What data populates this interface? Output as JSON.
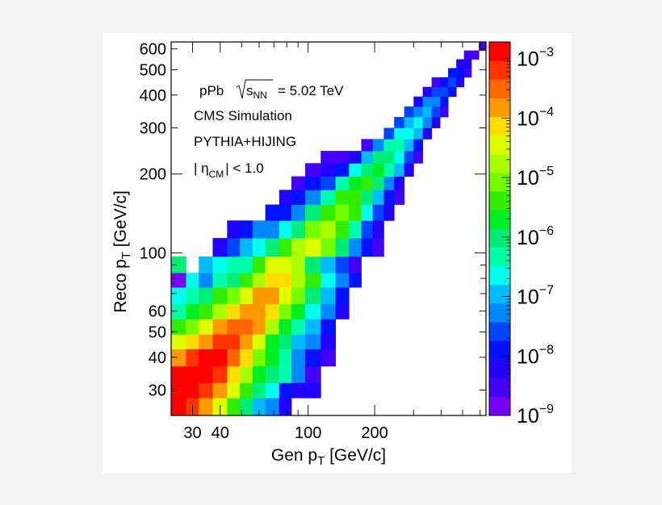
{
  "chart_data": {
    "type": "heatmap",
    "xlabel": {
      "main": "Gen p",
      "sub": "T",
      "unit": " [GeV/c]"
    },
    "ylabel": {
      "main": "Reco p",
      "sub": "T",
      "unit": " [GeV/c]"
    },
    "x_scale": "log",
    "y_scale": "log",
    "z_scale": "log",
    "xlim": [
      24,
      638
    ],
    "ylim": [
      24,
      638
    ],
    "zlim": [
      1e-09,
      0.0019
    ],
    "bin_edges": [
      24,
      28,
      32,
      37,
      43,
      49,
      56,
      64,
      74,
      84,
      97,
      114,
      133,
      153,
      174,
      196,
      220,
      245,
      272,
      300,
      330,
      362,
      395,
      430,
      468,
      507,
      548,
      592,
      638
    ],
    "x_tick_labels": [
      "30",
      "40",
      "100",
      "200"
    ],
    "x_tick_values": [
      30,
      40,
      100,
      200
    ],
    "x_minor_ticks": [
      50,
      60,
      70,
      80,
      90,
      300,
      400,
      500,
      600
    ],
    "y_tick_labels": [
      "30",
      "40",
      "50",
      "60",
      "100",
      "200",
      "300",
      "400",
      "500",
      "600"
    ],
    "y_tick_values": [
      30,
      40,
      50,
      60,
      100,
      200,
      300,
      400,
      500,
      600
    ],
    "y_minor_ticks": [
      70,
      80,
      90
    ],
    "colorbar": {
      "labels": [
        {
          "base": "10",
          "exp": "−3",
          "value": -3
        },
        {
          "base": "10",
          "exp": "−4",
          "value": -4
        },
        {
          "base": "10",
          "exp": "−5",
          "value": -5
        },
        {
          "base": "10",
          "exp": "−6",
          "value": -6
        },
        {
          "base": "10",
          "exp": "−7",
          "value": -7
        },
        {
          "base": "10",
          "exp": "−8",
          "value": -8
        },
        {
          "base": "10",
          "exp": "−9",
          "value": -9
        }
      ],
      "palette": [
        "#7700ff",
        "#4400ff",
        "#2200ff",
        "#0011ff",
        "#0044ff",
        "#0088ff",
        "#00bbff",
        "#00ffee",
        "#00ffaa",
        "#00ee77",
        "#00ee22",
        "#33ee00",
        "#77ff00",
        "#aaff00",
        "#ddff00",
        "#ffdd00",
        "#ff9900",
        "#ff6600",
        "#ff3300",
        "#ff0000"
      ]
    },
    "rows": [
      {
        "reco_bin": 0,
        "first_gen_bin": 0,
        "z": [
          0.0013,
          0.00064,
          0.00015,
          3.6e-05,
          4.1e-06,
          9.6e-07,
          1.1e-07,
          5.3e-08,
          6.1e-09
        ]
      },
      {
        "reco_bin": 1,
        "first_gen_bin": 0,
        "z": [
          0.0013,
          0.0013,
          0.00064,
          0.00015,
          3.6e-05,
          4.1e-06,
          9.6e-07,
          2.3e-07,
          1.3e-08,
          6.1e-09,
          6.1e-09
        ]
      },
      {
        "reco_bin": 2,
        "first_gen_bin": 0,
        "z": [
          0.0013,
          0.0013,
          0.0013,
          0.00064,
          7.4e-05,
          1.7e-05,
          2e-06,
          9.6e-07,
          4.7e-07,
          5.3e-08,
          3e-09
        ]
      },
      {
        "reco_bin": 3,
        "first_gen_bin": 0,
        "z": [
          0.00015,
          0.00064,
          0.0013,
          0.0013,
          0.00031,
          7.4e-05,
          8.4e-06,
          2e-06,
          4.7e-07,
          5.3e-08,
          1.3e-08,
          3e-09
        ]
      },
      {
        "reco_bin": 4,
        "first_gen_bin": 0,
        "z": [
          3.6e-05,
          7.4e-05,
          0.00015,
          0.00064,
          0.00064,
          0.00015,
          3.6e-05,
          2e-06,
          9.6e-07,
          1.1e-07,
          5.3e-08,
          6.1e-09
        ]
      },
      {
        "reco_bin": 5,
        "first_gen_bin": 0,
        "z": [
          4.1e-06,
          8.4e-06,
          3.6e-05,
          0.00015,
          0.00031,
          0.00031,
          0.00015,
          1.7e-05,
          2e-06,
          4.7e-07,
          1.1e-07,
          1.3e-08
        ]
      },
      {
        "reco_bin": 6,
        "first_gen_bin": 0,
        "z": [
          4.7e-07,
          2e-06,
          4.1e-06,
          1.7e-05,
          7.4e-05,
          0.00015,
          0.00015,
          7.4e-05,
          8.4e-06,
          2e-06,
          2.3e-07,
          5.3e-08,
          6.1e-09
        ]
      },
      {
        "reco_bin": 7,
        "first_gen_bin": 0,
        "z": [
          2.3e-07,
          4.7e-07,
          9.6e-07,
          4.1e-06,
          8.4e-06,
          3.6e-05,
          0.00015,
          0.00015,
          3.6e-05,
          8.4e-06,
          9.6e-07,
          1.1e-07,
          1.3e-08
        ]
      },
      {
        "reco_bin": 8,
        "first_gen_bin": 0,
        "z": [
          1.4e-09,
          2.3e-07,
          5.3e-08,
          4.7e-07,
          9.6e-07,
          4.1e-06,
          1.7e-05,
          7.4e-05,
          7.4e-05,
          1.7e-05,
          4.1e-06,
          2.3e-07,
          5.3e-08,
          1.3e-08
        ]
      },
      {
        "reco_bin": 9,
        "first_gen_bin": 0,
        "z": [
          9.6e-07,
          null,
          1.1e-07,
          2.3e-07,
          4.7e-07,
          4.7e-07,
          4.1e-06,
          3.6e-05,
          3.6e-05,
          1.7e-05,
          9.6e-07,
          1.1e-07,
          2.6e-08,
          3e-09
        ]
      },
      {
        "reco_bin": 10,
        "first_gen_bin": 3,
        "z": [
          6.1e-09,
          2.6e-08,
          1.1e-07,
          2.3e-07,
          9.6e-07,
          4.1e-06,
          1.7e-05,
          3.6e-05,
          8.4e-06,
          9.6e-07,
          5.3e-08,
          1.3e-08,
          3e-09
        ]
      },
      {
        "reco_bin": 11,
        "first_gen_bin": 4,
        "z": [
          6.1e-09,
          1.3e-08,
          5.3e-08,
          5.3e-08,
          2.3e-07,
          9.6e-07,
          8.4e-06,
          1.7e-05,
          4.1e-06,
          4.7e-07,
          2.6e-08,
          6.1e-09
        ]
      },
      {
        "reco_bin": 12,
        "first_gen_bin": 7,
        "z": [
          1.3e-08,
          1.3e-08,
          5.3e-08,
          9.6e-07,
          4.1e-06,
          8.4e-06,
          4.1e-06,
          2.3e-07,
          2.6e-08,
          6.1e-09
        ]
      },
      {
        "reco_bin": 13,
        "first_gen_bin": 8,
        "z": [
          6.1e-09,
          1.3e-08,
          5.3e-08,
          4.7e-07,
          4.1e-06,
          4.1e-06,
          9.6e-07,
          1.1e-07,
          1.3e-08,
          3e-09
        ]
      },
      {
        "reco_bin": 14,
        "first_gen_bin": 9,
        "z": [
          3e-09,
          1.3e-08,
          2.6e-08,
          4.7e-07,
          2e-06,
          4.1e-06,
          9.6e-07,
          5.3e-08,
          6.1e-09
        ]
      },
      {
        "reco_bin": 15,
        "first_gen_bin": 10,
        "z": [
          3e-09,
          6.1e-09,
          1.3e-08,
          2.3e-07,
          9.6e-07,
          2e-06,
          4.7e-07,
          1.1e-07,
          6.1e-09
        ]
      },
      {
        "reco_bin": 16,
        "first_gen_bin": 11,
        "z": [
          3e-09,
          3e-09,
          6.1e-09,
          1.1e-07,
          9.6e-07,
          9.6e-07,
          2.3e-07,
          2.6e-08,
          3e-09
        ]
      },
      {
        "reco_bin": 17,
        "first_gen_bin": 14,
        "z": [
          3e-09,
          5.3e-08,
          4.7e-07,
          4.7e-07,
          1.1e-07,
          1.3e-08
        ]
      },
      {
        "reco_bin": 18,
        "first_gen_bin": 16,
        "z": [
          2.6e-08,
          2.3e-07,
          2.3e-07,
          1.1e-07,
          6.1e-09
        ]
      },
      {
        "reco_bin": 19,
        "first_gen_bin": 17,
        "z": [
          2.6e-08,
          1.1e-07,
          2.3e-07,
          5.3e-08,
          6.1e-09
        ]
      },
      {
        "reco_bin": 20,
        "first_gen_bin": 18,
        "z": [
          2.6e-08,
          5.3e-08,
          1.1e-07,
          2.6e-08,
          3e-09
        ]
      },
      {
        "reco_bin": 21,
        "first_gen_bin": 19,
        "z": [
          6.1e-09,
          5.3e-08,
          5.3e-08,
          1.3e-08
        ]
      },
      {
        "reco_bin": 22,
        "first_gen_bin": 20,
        "z": [
          6.1e-09,
          2.6e-08,
          2.6e-08,
          1.3e-08
        ]
      },
      {
        "reco_bin": 23,
        "first_gen_bin": 21,
        "z": [
          3e-09,
          1.3e-08,
          2.6e-08,
          6.1e-09
        ]
      },
      {
        "reco_bin": 24,
        "first_gen_bin": 23,
        "z": [
          1.3e-08,
          1.3e-08,
          3e-09
        ]
      },
      {
        "reco_bin": 25,
        "first_gen_bin": 24,
        "z": [
          6.1e-09,
          6.1e-09
        ]
      },
      {
        "reco_bin": 26,
        "first_gen_bin": 25,
        "z": [
          3e-09,
          3e-09
        ]
      },
      {
        "reco_bin": 27,
        "first_gen_bin": 27,
        "z": [
          3e-09
        ]
      }
    ],
    "annotations": {
      "collision": "pPb",
      "sqrt_s": "s",
      "sqrt_s_sub": "NN",
      "energy": "= 5.02 TeV",
      "experiment": "CMS Simulation",
      "generator": "PYTHIA+HIJING",
      "eta_open": "| η",
      "eta_sub": "CM",
      "eta_close": "| < 1.0"
    }
  }
}
